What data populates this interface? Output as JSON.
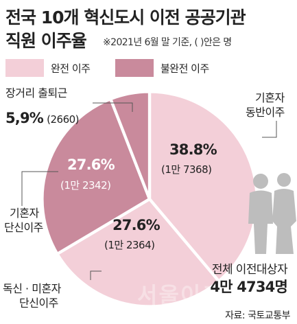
{
  "title_line1": "전국 10개 혁신도시 이전 공공기관",
  "title_line2": "직원 이주율",
  "subnote": "※2021년 6월 말 기준, (  )안은 명",
  "legend": [
    {
      "label": "완전 이주",
      "color": "#f3cfd8"
    },
    {
      "label": "불완전 이주",
      "color": "#c98a9c"
    }
  ],
  "chart_data": {
    "type": "pie",
    "donut": true,
    "slices": [
      {
        "label": "기혼자 동반이주",
        "pct_text": "38.8%",
        "count_text": "(1만 7368)",
        "value": 38.8,
        "count": 17368,
        "group": "완전 이주",
        "color": "#f3cfd8"
      },
      {
        "label": "독신 · 미혼자 단신이주",
        "pct_text": "27.6%",
        "count_text": "(1만 2364)",
        "value": 27.6,
        "count": 12364,
        "group": "완전 이주",
        "color": "#f3cfd8"
      },
      {
        "label": "기혼자 단신이주",
        "pct_text": "27.6%",
        "count_text": "(1만 2342)",
        "value": 27.6,
        "count": 12342,
        "group": "불완전 이주",
        "color": "#c98a9c"
      },
      {
        "label": "장거리 출퇴근",
        "pct_text": "5.9%",
        "count_text": "(2660)",
        "value": 5.9,
        "count": 2660,
        "group": "불완전 이주",
        "color": "#c98a9c"
      }
    ]
  },
  "labels": {
    "commute_name": "장거리 출퇴근",
    "commute_pct": "5,9%",
    "commute_count": "(2660)",
    "married_with_family_l1": "기혼자",
    "married_with_family_l2": "동반이주",
    "married_alone_l1": "기혼자",
    "married_alone_l2": "단신이주",
    "single_l1": "독신 · 미혼자",
    "single_l2": "단신이주"
  },
  "total_label": "전체 이전대상자",
  "total_value": "4만 4734명",
  "source": "자료: 국토교통부",
  "watermark": "서울이코"
}
